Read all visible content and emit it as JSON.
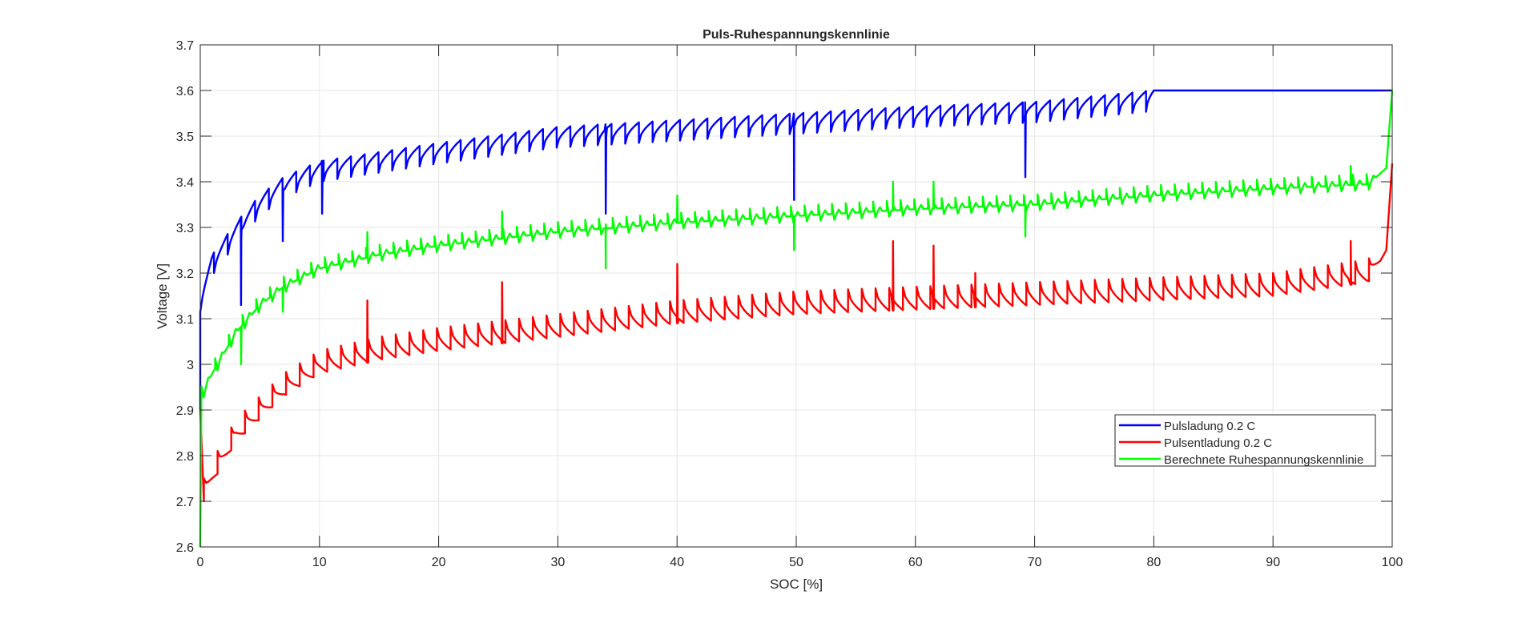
{
  "chart_data": {
    "type": "line",
    "title": "Puls-Ruhespannungskennlinie",
    "xlabel": "SOC [%]",
    "ylabel": "Voltage [V]",
    "xlim": [
      0,
      100
    ],
    "ylim": [
      2.6,
      3.7
    ],
    "xticks": [
      0,
      10,
      20,
      30,
      40,
      50,
      60,
      70,
      80,
      90,
      100
    ],
    "yticks": [
      2.6,
      2.7,
      2.8,
      2.9,
      3,
      3.1,
      3.2,
      3.3,
      3.4,
      3.5,
      3.6,
      3.7
    ],
    "ytick_labels": [
      "2.6",
      "2.7",
      "2.8",
      "2.9",
      "3",
      "3.1",
      "3.2",
      "3.3",
      "3.4",
      "3.5",
      "3.6",
      "3.7"
    ],
    "grid": true,
    "legend_position": "lower-right",
    "series": [
      {
        "name": "Pulsladung 0.2 C",
        "color": "#0000ff",
        "shape": "dip-recover",
        "start": [
          [
            0,
            2.9
          ]
        ],
        "envelope": [
          [
            0,
            3.16
          ],
          [
            1,
            3.24
          ],
          [
            3,
            3.31
          ],
          [
            5,
            3.37
          ],
          [
            7,
            3.41
          ],
          [
            10,
            3.445
          ],
          [
            15,
            3.465
          ],
          [
            20,
            3.485
          ],
          [
            30,
            3.52
          ],
          [
            40,
            3.535
          ],
          [
            50,
            3.55
          ],
          [
            60,
            3.565
          ],
          [
            70,
            3.575
          ],
          [
            80,
            3.6
          ],
          [
            100,
            3.6
          ]
        ],
        "pulse_period": 1.15,
        "pulse_amplitude": 0.045,
        "pulse_end": 80,
        "spikes": [
          [
            3.4,
            3.13
          ],
          [
            6.9,
            3.27
          ],
          [
            10.2,
            3.33
          ],
          [
            34,
            3.33
          ],
          [
            49.8,
            3.36
          ],
          [
            69.2,
            3.41
          ]
        ]
      },
      {
        "name": "Pulsentladung 0.2 C",
        "color": "#ff0000",
        "shape": "jump-decay",
        "start": [
          [
            0,
            2.9
          ],
          [
            0.3,
            2.7
          ]
        ],
        "envelope": [
          [
            0.3,
            2.7
          ],
          [
            1,
            2.74
          ],
          [
            3,
            2.83
          ],
          [
            5,
            2.88
          ],
          [
            7,
            2.93
          ],
          [
            10,
            2.98
          ],
          [
            15,
            3.01
          ],
          [
            20,
            3.03
          ],
          [
            30,
            3.06
          ],
          [
            40,
            3.09
          ],
          [
            50,
            3.11
          ],
          [
            60,
            3.12
          ],
          [
            70,
            3.13
          ],
          [
            80,
            3.14
          ],
          [
            90,
            3.15
          ],
          [
            98,
            3.18
          ],
          [
            99.5,
            3.25
          ],
          [
            100,
            3.44
          ]
        ],
        "pulse_period": 1.15,
        "pulse_amplitude": 0.05,
        "pulse_end": 99,
        "spikes": [
          [
            14,
            3.14
          ],
          [
            25.3,
            3.18
          ],
          [
            40,
            3.22
          ],
          [
            58.1,
            3.27
          ],
          [
            61.5,
            3.26
          ],
          [
            65,
            3.2
          ],
          [
            96.5,
            3.27
          ]
        ]
      },
      {
        "name": "Berechnete Ruhespannungskennlinie",
        "color": "#00ff00",
        "shape": "zigzag",
        "start": [
          [
            0,
            2.6
          ]
        ],
        "envelope": [
          [
            0.1,
            2.93
          ],
          [
            1,
            2.98
          ],
          [
            3,
            3.07
          ],
          [
            5,
            3.13
          ],
          [
            7,
            3.17
          ],
          [
            10,
            3.21
          ],
          [
            15,
            3.24
          ],
          [
            20,
            3.26
          ],
          [
            30,
            3.29
          ],
          [
            40,
            3.31
          ],
          [
            50,
            3.325
          ],
          [
            60,
            3.34
          ],
          [
            70,
            3.35
          ],
          [
            80,
            3.37
          ],
          [
            90,
            3.385
          ],
          [
            98,
            3.395
          ],
          [
            99.5,
            3.43
          ],
          [
            100,
            3.6
          ]
        ],
        "pulse_period": 1.15,
        "pulse_amplitude": 0.022,
        "pulse_end": 99,
        "spikes": [
          [
            3.4,
            3.0
          ],
          [
            6.9,
            3.115
          ],
          [
            14,
            3.29
          ],
          [
            25.3,
            3.335
          ],
          [
            34,
            3.21
          ],
          [
            40,
            3.37
          ],
          [
            49.8,
            3.25
          ],
          [
            58.1,
            3.4
          ],
          [
            61.5,
            3.4
          ],
          [
            69.2,
            3.28
          ],
          [
            96.5,
            3.435
          ]
        ]
      }
    ]
  }
}
